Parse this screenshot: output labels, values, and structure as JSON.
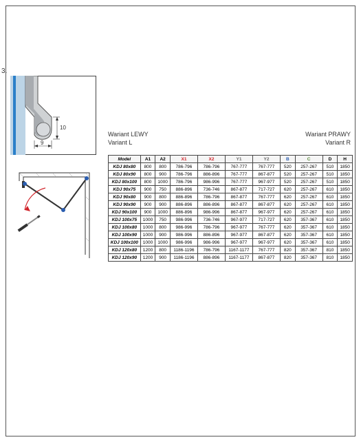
{
  "step_label": "3.",
  "diagram": {
    "dim_h": "10",
    "dim_w": "9",
    "stroke_gray": "#808285",
    "stroke_dark": "#333333",
    "accent_blue": "#2a7fc9",
    "accent_red": "#d1232a"
  },
  "variants": {
    "left_native": "Wariant LEWY",
    "left_en": "Variant L",
    "right_native": "Wariant PRAWY",
    "right_en": "Variant R"
  },
  "table": {
    "header_colors": {
      "model": "#000000",
      "a": "#000000",
      "x": "#d1232a",
      "y": "#6b6b6b",
      "b": "#2a5db0",
      "c": "#5a8a3a",
      "dh": "#000000"
    },
    "columns": [
      "Model",
      "A1",
      "A2",
      "X1",
      "X2",
      "Y1",
      "Y2",
      "B",
      "C",
      "D",
      "H"
    ],
    "rows": [
      [
        "KDJ 80x80",
        "800",
        "800",
        "786-796",
        "786-796",
        "767-777",
        "767-777",
        "520",
        "257-267",
        "510",
        "1850"
      ],
      [
        "KDJ 80x90",
        "800",
        "900",
        "786-796",
        "886-896",
        "767-777",
        "867-877",
        "520",
        "257-267",
        "510",
        "1850"
      ],
      [
        "KDJ 80x100",
        "800",
        "1000",
        "786-796",
        "986-996",
        "767-777",
        "967-977",
        "520",
        "257-267",
        "510",
        "1850"
      ],
      [
        "KDJ 90x75",
        "900",
        "750",
        "886-896",
        "736-746",
        "867-877",
        "717-727",
        "620",
        "257-267",
        "610",
        "1850"
      ],
      [
        "KDJ 90x80",
        "900",
        "800",
        "886-896",
        "786-796",
        "867-877",
        "767-777",
        "620",
        "257-267",
        "610",
        "1850"
      ],
      [
        "KDJ 90x90",
        "900",
        "900",
        "886-896",
        "886-896",
        "867-877",
        "867-877",
        "620",
        "257-267",
        "610",
        "1850"
      ],
      [
        "KDJ 90x100",
        "900",
        "1000",
        "886-896",
        "986-996",
        "867-877",
        "967-977",
        "620",
        "257-267",
        "610",
        "1850"
      ],
      [
        "KDJ 100x75",
        "1000",
        "750",
        "986-996",
        "736-746",
        "967-977",
        "717-727",
        "620",
        "357-367",
        "610",
        "1850"
      ],
      [
        "KDJ 100x80",
        "1000",
        "800",
        "986-996",
        "786-796",
        "967-977",
        "767-777",
        "620",
        "357-367",
        "610",
        "1850"
      ],
      [
        "KDJ 100x90",
        "1000",
        "900",
        "986-996",
        "886-896",
        "967-977",
        "867-877",
        "620",
        "357-367",
        "610",
        "1850"
      ],
      [
        "KDJ 100x100",
        "1000",
        "1000",
        "986-996",
        "986-996",
        "967-977",
        "967-977",
        "620",
        "357-367",
        "610",
        "1850"
      ],
      [
        "KDJ 120x80",
        "1200",
        "800",
        "1186-1196",
        "786-796",
        "1167-1177",
        "767-777",
        "820",
        "357-367",
        "810",
        "1850"
      ],
      [
        "KDJ 120x90",
        "1200",
        "900",
        "1186-1196",
        "886-896",
        "1167-1177",
        "867-877",
        "820",
        "357-367",
        "810",
        "1850"
      ]
    ]
  }
}
